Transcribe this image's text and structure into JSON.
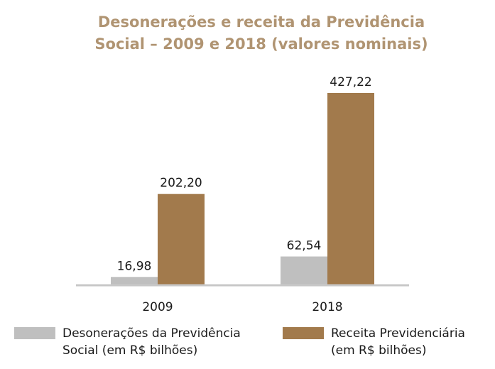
{
  "chart_data": {
    "type": "bar",
    "title_lines": [
      "Desonerações e receita da Previdência",
      "Social – 2009 e 2018 (valores nominais)"
    ],
    "categories": [
      "2009",
      "2018"
    ],
    "series": [
      {
        "name_lines": [
          "Desonerações da Previdência",
          "Social (em R$ bilhões)"
        ],
        "color": "#bfbfbf",
        "values": [
          16.98,
          62.54
        ],
        "labels": [
          "16,98",
          "62,54"
        ]
      },
      {
        "name_lines": [
          "Receita Previdenciária",
          "(em R$ bilhões)"
        ],
        "color": "#a27a4c",
        "values": [
          202.2,
          427.22
        ],
        "labels": [
          "202,20",
          "427,22"
        ]
      }
    ],
    "ylim": [
      0,
      427.22
    ],
    "grid": false,
    "legend_position": "bottom",
    "axis_color": "#c8c8c8",
    "title_color": "#b09472"
  }
}
